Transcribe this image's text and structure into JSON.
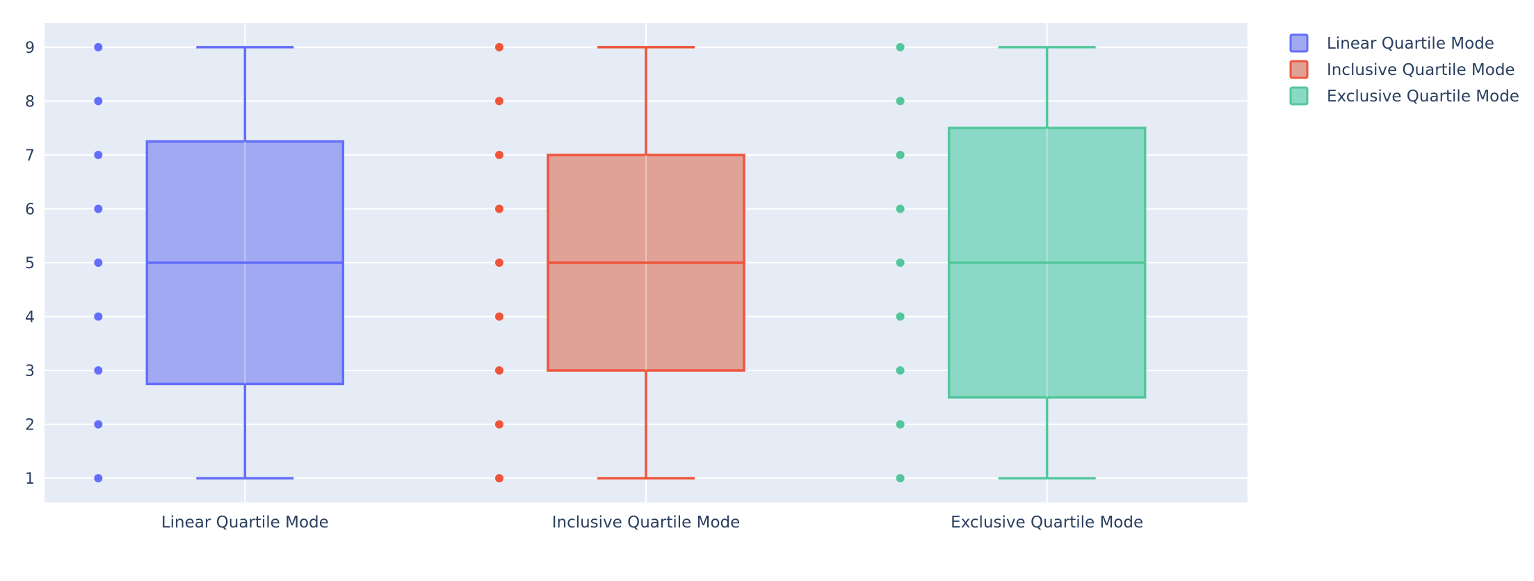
{
  "chart_data": {
    "type": "box",
    "title": "",
    "xlabel": "",
    "ylabel": "",
    "ylim": [
      0.55,
      9.45
    ],
    "yticks": [
      1,
      2,
      3,
      4,
      5,
      6,
      7,
      8,
      9
    ],
    "grid": true,
    "legend_position": "top-right",
    "plot_background": "#E5ECF6",
    "points_mode": "all",
    "series": [
      {
        "name": "Linear Quartile Mode",
        "color": "#636EFA",
        "fill": "#A2A9F3",
        "quartile_method": "linear",
        "values": [
          1,
          2,
          3,
          4,
          5,
          6,
          7,
          8,
          9
        ],
        "min": 1,
        "q1": 2.75,
        "median": 5,
        "q3": 7.25,
        "max": 9
      },
      {
        "name": "Inclusive Quartile Mode",
        "color": "#EF553B",
        "fill": "#E0A197",
        "quartile_method": "inclusive",
        "values": [
          1,
          2,
          3,
          4,
          5,
          6,
          7,
          8,
          9
        ],
        "min": 1,
        "q1": 3,
        "median": 5,
        "q3": 7,
        "max": 9
      },
      {
        "name": "Exclusive Quartile Mode",
        "color": "#00CC96",
        "fill": "#8AD9C6",
        "stroke": "#53C79B",
        "quartile_method": "exclusive",
        "values": [
          1,
          2,
          3,
          4,
          5,
          6,
          7,
          8,
          9
        ],
        "min": 1,
        "q1": 2.5,
        "median": 5,
        "q3": 7.5,
        "max": 9
      }
    ]
  }
}
